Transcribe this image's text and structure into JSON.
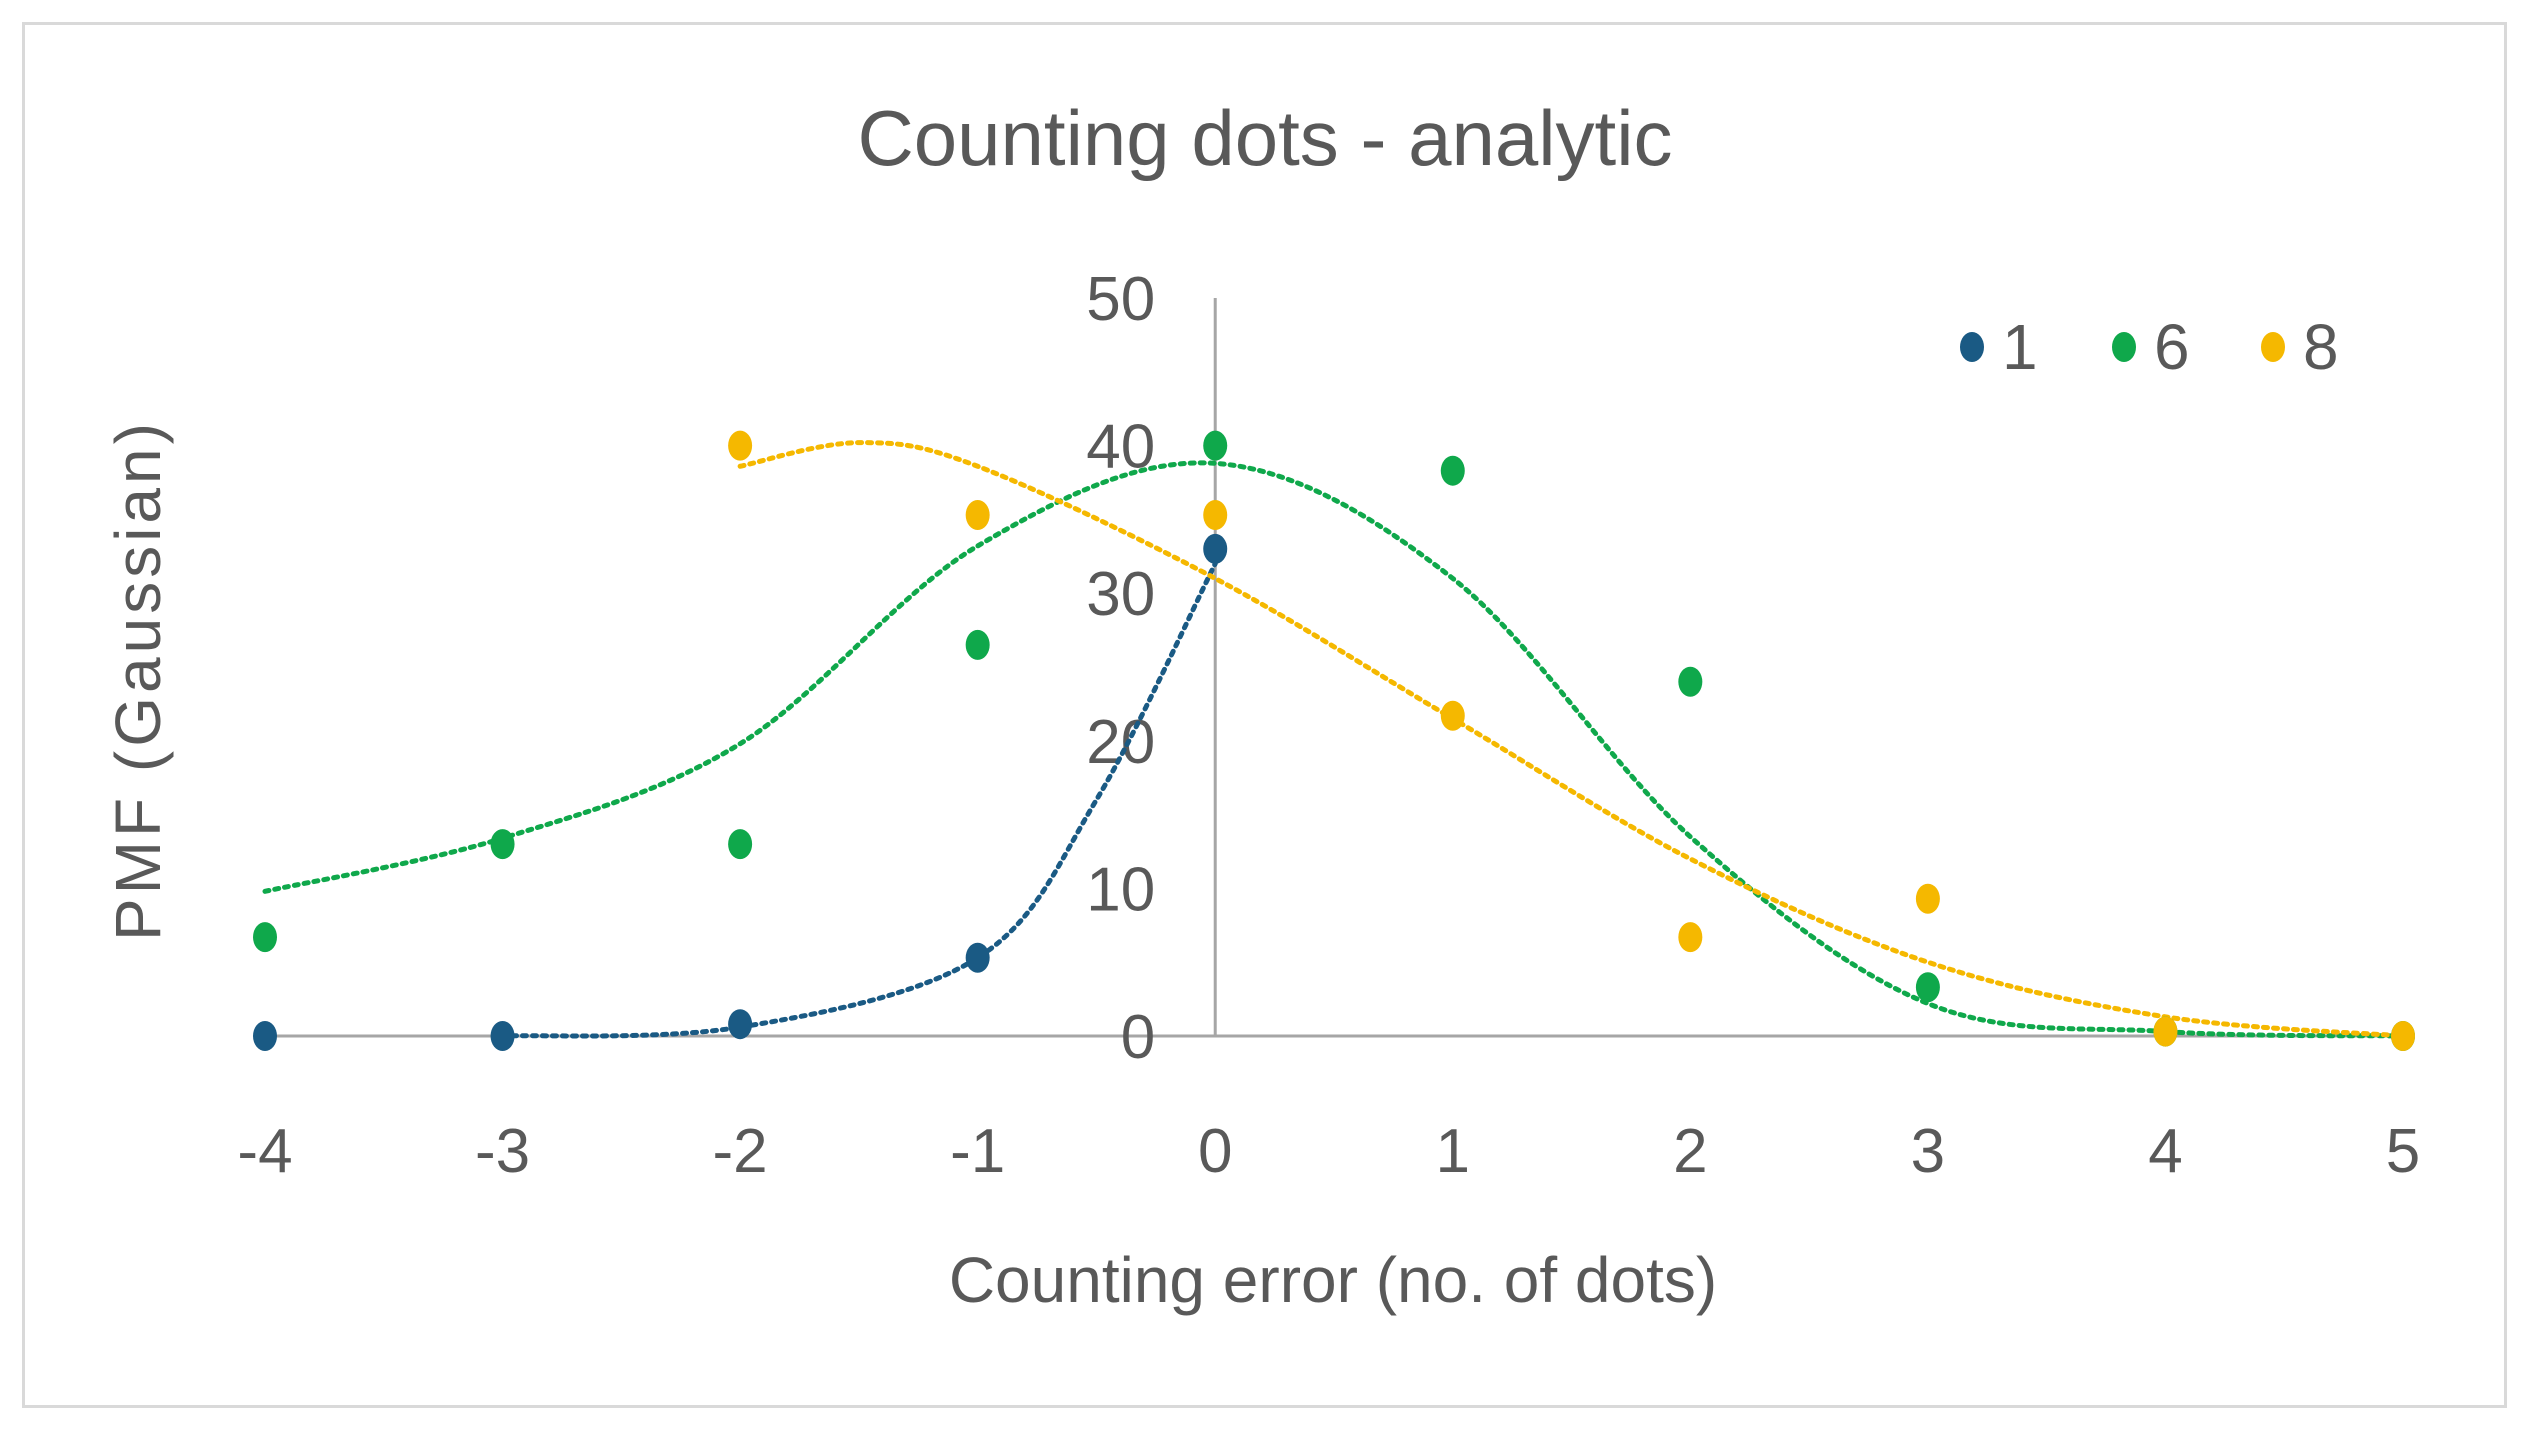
{
  "chart_data": {
    "type": "scatter",
    "title": "Counting dots - analytic",
    "xlabel": "Counting error (no. of dots)",
    "ylabel": "PMF (Gaussian)",
    "xlim": [
      -4,
      5
    ],
    "ylim": [
      0,
      50
    ],
    "x_ticks": [
      -4,
      -3,
      -2,
      -1,
      0,
      1,
      2,
      3,
      4,
      5
    ],
    "y_ticks": [
      0,
      10,
      20,
      30,
      40,
      50
    ],
    "grid": false,
    "legend_position": "top-right",
    "trendlines": "dotted smoothed",
    "series": [
      {
        "name": "1",
        "color": "#1a5a84",
        "points": [
          [
            -4,
            0
          ],
          [
            -3,
            0
          ],
          [
            -2,
            0.8
          ],
          [
            -1,
            5.3
          ],
          [
            0,
            33
          ]
        ],
        "trend": [
          [
            -3,
            0
          ],
          [
            -2,
            0.6
          ],
          [
            -1,
            5.3
          ],
          [
            -0.5,
            16
          ],
          [
            0,
            32
          ]
        ]
      },
      {
        "name": "6",
        "color": "#0fa84b",
        "points": [
          [
            -4,
            6.7
          ],
          [
            -3,
            13
          ],
          [
            -2,
            13
          ],
          [
            -1,
            26.5
          ],
          [
            0,
            40
          ],
          [
            1,
            38.3
          ],
          [
            2,
            24
          ],
          [
            3,
            3.3
          ],
          [
            4,
            0.3
          ],
          [
            5,
            0
          ]
        ],
        "trend": [
          [
            -4,
            9.8
          ],
          [
            -3,
            13.4
          ],
          [
            -2,
            19.8
          ],
          [
            -1,
            33.2
          ],
          [
            0,
            38.8
          ],
          [
            1,
            31
          ],
          [
            2,
            13.5
          ],
          [
            3,
            2.2
          ],
          [
            4,
            0.3
          ],
          [
            5,
            0
          ]
        ]
      },
      {
        "name": "8",
        "color": "#f5b800",
        "points": [
          [
            -2,
            40
          ],
          [
            -1,
            35.3
          ],
          [
            0,
            35.3
          ],
          [
            1,
            21.7
          ],
          [
            2,
            6.7
          ],
          [
            3,
            9.3
          ],
          [
            4,
            0.3
          ],
          [
            5,
            0
          ]
        ],
        "trend": [
          [
            -2,
            38.6
          ],
          [
            -1.5,
            40.2
          ],
          [
            -1,
            38.6
          ],
          [
            0,
            31
          ],
          [
            1,
            21.5
          ],
          [
            2,
            12
          ],
          [
            3,
            5
          ],
          [
            4,
            1.3
          ],
          [
            5,
            0
          ]
        ]
      }
    ]
  }
}
